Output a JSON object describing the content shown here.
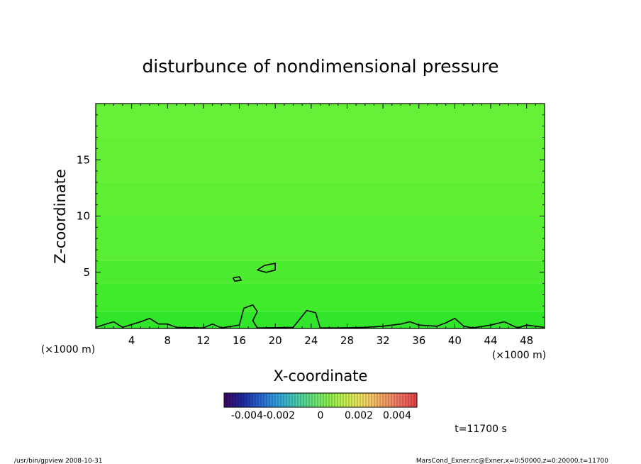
{
  "chart_data": {
    "type": "heatmap",
    "title": "disturbunce of nondimensional pressure",
    "xlabel": "X-coordinate",
    "ylabel": "Z-coordinate",
    "x_unit_left": "(×1000 m)",
    "x_unit_right": "(×1000 m)",
    "xlim": [
      0,
      50
    ],
    "ylim": [
      0,
      20
    ],
    "xticks": [
      4,
      8,
      12,
      16,
      20,
      24,
      28,
      32,
      36,
      40,
      44,
      48
    ],
    "yticks": [
      5,
      10,
      15
    ],
    "colorbar": {
      "range": [
        -0.005,
        0.005
      ],
      "tick_labels": [
        "-0.004-0.002",
        "0",
        "0.002",
        "0.004"
      ],
      "colors": [
        "#3b0a64",
        "#1e28a0",
        "#2a64d2",
        "#32a0dc",
        "#46c8b4",
        "#64e17d",
        "#8cf050",
        "#c8f050",
        "#f0dc64",
        "#f5aa64",
        "#f07864",
        "#e64646"
      ]
    },
    "field_bands": [
      {
        "z": [
          0,
          1.5
        ],
        "color": "#31e62a"
      },
      {
        "z": [
          1.5,
          4
        ],
        "color": "#42ea2c"
      },
      {
        "z": [
          4,
          6
        ],
        "color": "#4ceb30"
      },
      {
        "z": [
          6,
          10
        ],
        "color": "#58ee33"
      },
      {
        "z": [
          10,
          13
        ],
        "color": "#5eef33"
      },
      {
        "z": [
          13,
          17
        ],
        "color": "#63ef36"
      },
      {
        "z": [
          17,
          20
        ],
        "color": "#66f038"
      }
    ],
    "contours": [
      {
        "level": 0,
        "points": [
          [
            0,
            0.1
          ],
          [
            2,
            0.6
          ],
          [
            3,
            0.1
          ],
          [
            5,
            0.6
          ],
          [
            6,
            0.9
          ],
          [
            7,
            0.4
          ],
          [
            8,
            0.4
          ],
          [
            9,
            0.1
          ],
          [
            12,
            0.05
          ],
          [
            13,
            0.4
          ],
          [
            14,
            0.05
          ],
          [
            16,
            0.3
          ],
          [
            16.5,
            1.8
          ],
          [
            17.5,
            2.1
          ],
          [
            18,
            1.5
          ],
          [
            17.5,
            0.7
          ],
          [
            18,
            0.05
          ],
          [
            22,
            0.1
          ],
          [
            23.5,
            1.6
          ],
          [
            24.5,
            1.4
          ],
          [
            25,
            0.05
          ],
          [
            27,
            0.05
          ],
          [
            30,
            0.1
          ],
          [
            32,
            0.2
          ],
          [
            34,
            0.4
          ],
          [
            35,
            0.6
          ],
          [
            36,
            0.3
          ],
          [
            38,
            0.2
          ],
          [
            39,
            0.5
          ],
          [
            40,
            0.9
          ],
          [
            41,
            0.2
          ],
          [
            42,
            0.05
          ],
          [
            44,
            0.3
          ],
          [
            45.5,
            0.6
          ],
          [
            47,
            0.05
          ],
          [
            48,
            0.3
          ],
          [
            50,
            0.1
          ]
        ]
      },
      {
        "level": 0,
        "points": [
          [
            18,
            5.2
          ],
          [
            18.8,
            5.6
          ],
          [
            20,
            5.8
          ],
          [
            20,
            5.2
          ],
          [
            19,
            5.0
          ],
          [
            18,
            5.2
          ]
        ]
      },
      {
        "level": 0,
        "points": [
          [
            15.3,
            4.5
          ],
          [
            16,
            4.6
          ],
          [
            16.2,
            4.3
          ],
          [
            15.5,
            4.2
          ],
          [
            15.3,
            4.5
          ]
        ]
      }
    ],
    "time_label": "t=11700 s"
  },
  "footer": {
    "left": "/usr/bin/gpview  2008-10-31",
    "right": "MarsCond_Exner.nc@Exner,x=0:50000,z=0:20000,t=11700"
  }
}
